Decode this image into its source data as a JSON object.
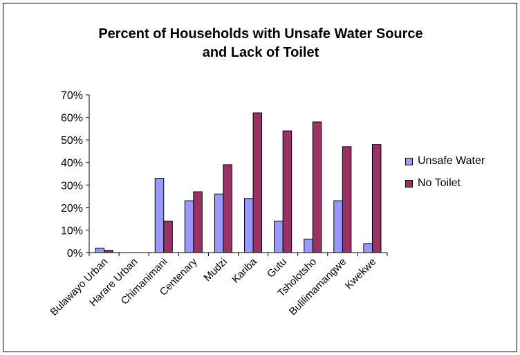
{
  "chart_data": {
    "type": "bar",
    "title_line1": "Percent of Households with Unsafe Water Source",
    "title_line2": "and Lack of Toilet",
    "categories": [
      "Bulawayo Urban",
      "Harare Urban",
      "Chimanimani",
      "Centenary",
      "Mudzi",
      "Kariba",
      "Gutu",
      "Tsholotsho",
      "Bulilimamangwe",
      "Kwekwe"
    ],
    "series": [
      {
        "name": "Unsafe Water",
        "color": "#9999ff",
        "values": [
          2,
          0,
          33,
          23,
          26,
          24,
          14,
          6,
          23,
          4
        ]
      },
      {
        "name": "No Toilet",
        "color": "#993366",
        "values": [
          1,
          0,
          14,
          27,
          39,
          62,
          54,
          58,
          47,
          48
        ]
      }
    ],
    "ylim": [
      0,
      70
    ],
    "yticks": [
      "0%",
      "10%",
      "20%",
      "30%",
      "40%",
      "50%",
      "60%",
      "70%"
    ],
    "grid": false,
    "legend_position": "right"
  }
}
